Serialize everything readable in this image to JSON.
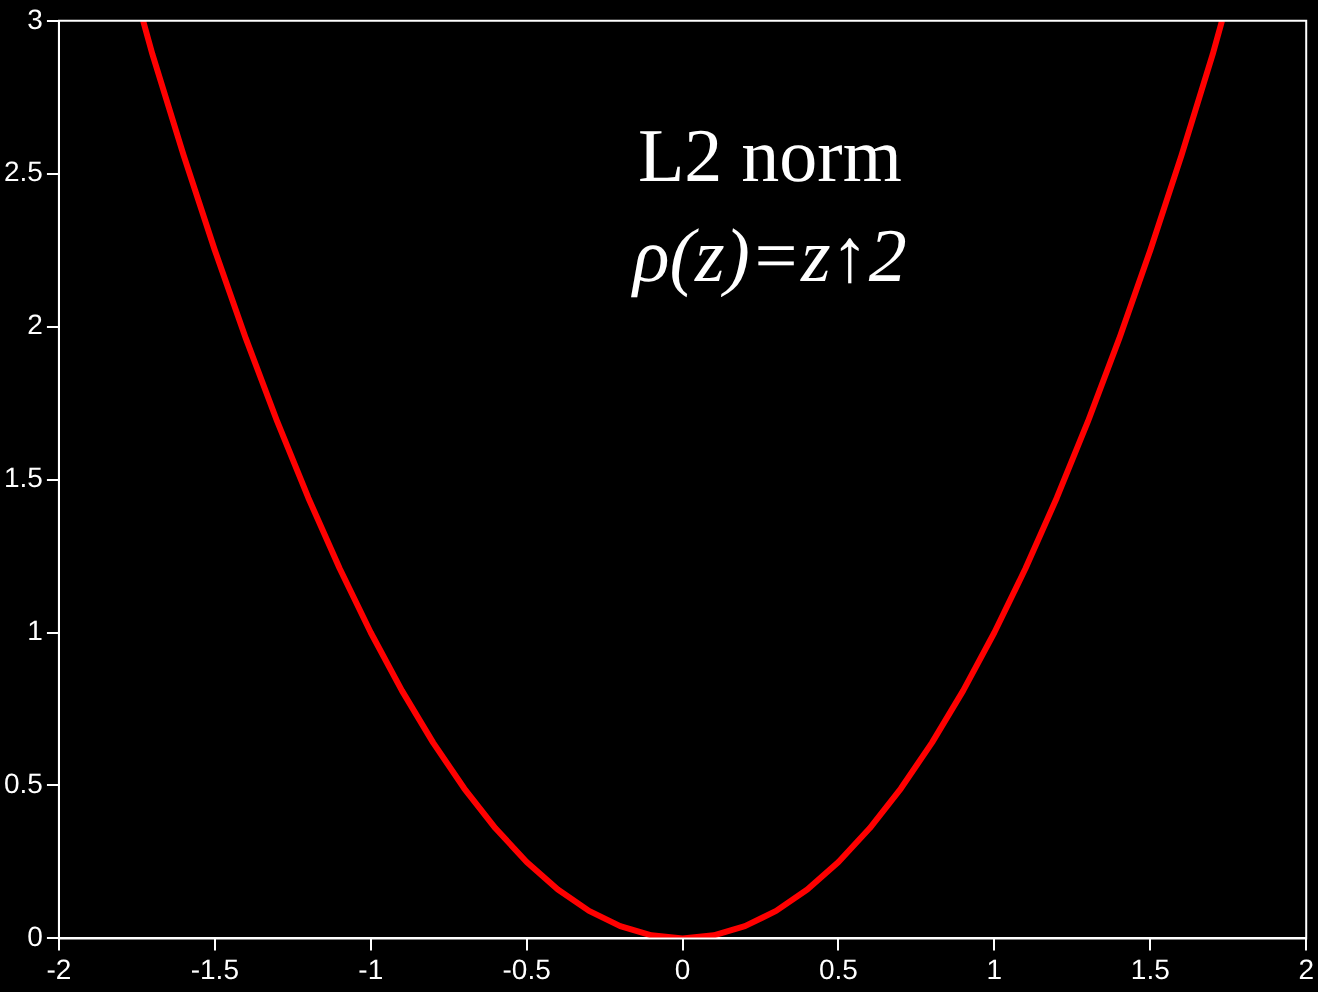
{
  "chart_data": {
    "type": "line",
    "x": [
      -1.73,
      -1.7,
      -1.6,
      -1.5,
      -1.4,
      -1.3,
      -1.2,
      -1.1,
      -1,
      -0.9,
      -0.8,
      -0.7,
      -0.6,
      -0.5,
      -0.4,
      -0.3,
      -0.2,
      -0.1,
      0,
      0.1,
      0.2,
      0.3,
      0.4,
      0.5,
      0.6,
      0.7,
      0.8,
      0.9,
      1,
      1.1,
      1.2,
      1.3,
      1.4,
      1.5,
      1.6,
      1.7,
      1.73
    ],
    "series": [
      {
        "color": "#ff0000",
        "values": [
          3,
          2.89,
          2.56,
          2.25,
          1.96,
          1.69,
          1.44,
          1.21,
          1,
          0.81,
          0.64,
          0.49,
          0.36,
          0.25,
          0.16,
          0.09,
          0.04,
          0.01,
          0,
          0.01,
          0.04,
          0.09,
          0.16,
          0.25,
          0.36,
          0.49,
          0.64,
          0.81,
          1,
          1.21,
          1.44,
          1.69,
          1.96,
          2.25,
          2.56,
          2.89,
          3
        ]
      }
    ],
    "xlim": [
      -2,
      2
    ],
    "xticks": [
      -2,
      -1.5,
      -1,
      -0.5,
      0,
      0.5,
      1,
      1.5,
      2
    ],
    "ylim": [
      0,
      3
    ],
    "yticks": [
      0,
      0.5,
      1,
      1.5,
      2,
      2.5,
      3
    ],
    "annotations": [
      "L2 norm",
      "ρ(z)=z↑2"
    ],
    "grid": false,
    "legend": false,
    "marker": "none",
    "line_style": "solid"
  }
}
